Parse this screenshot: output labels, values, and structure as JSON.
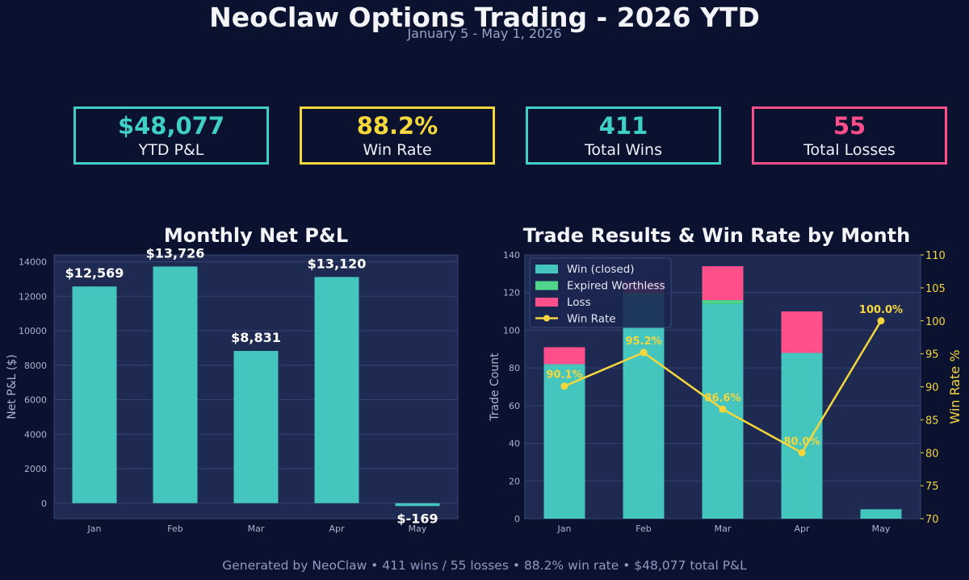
{
  "header": {
    "title": "NeoClaw Options Trading - 2026 YTD",
    "subtitle": "January 5 - May 1, 2026"
  },
  "kpis": [
    {
      "value": "$48,077",
      "label": "YTD P&L",
      "color": "#3ecfc6"
    },
    {
      "value": "88.2%",
      "label": "Win Rate",
      "color": "#f5d63d"
    },
    {
      "value": "411",
      "label": "Total Wins",
      "color": "#3ecfc6"
    },
    {
      "value": "55",
      "label": "Total Losses",
      "color": "#ff4f8b"
    }
  ],
  "footer": "Generated by NeoClaw  •  411 wins / 55 losses  •  88.2% win rate  •  $48,077 total P&L",
  "chart_data": [
    {
      "type": "bar",
      "title": "Monthly Net P&L",
      "ylabel": "Net P&L ($)",
      "categories": [
        "Jan",
        "Feb",
        "Mar",
        "Apr",
        "May"
      ],
      "values": [
        12569,
        13726,
        8831,
        13120,
        -169
      ],
      "data_labels": [
        "$12,569",
        "$13,726",
        "$8,831",
        "$13,120",
        "$-169"
      ],
      "ylim": [
        -900,
        14400
      ],
      "yticks": [
        0,
        2000,
        4000,
        6000,
        8000,
        10000,
        12000,
        14000
      ],
      "grid": true,
      "color": "#44c5bd"
    },
    {
      "type": "bar",
      "stacked": true,
      "title": "Trade Results & Win Rate by Month",
      "ylabel": "Trade Count",
      "y2label": "Win Rate %",
      "categories": [
        "Jan",
        "Feb",
        "Mar",
        "Apr",
        "May"
      ],
      "series": [
        {
          "name": "Win (closed)",
          "values": [
            82,
            118,
            114,
            88,
            5
          ],
          "color": "#44c5bd"
        },
        {
          "name": "Expired Worthless",
          "values": [
            0,
            2,
            2,
            0,
            0
          ],
          "color": "#4fd68a"
        },
        {
          "name": "Loss",
          "values": [
            9,
            6,
            18,
            22,
            0
          ],
          "color": "#ff4f8b"
        }
      ],
      "line_series": {
        "name": "Win Rate",
        "values": [
          90.1,
          95.2,
          86.6,
          80.0,
          100.0
        ],
        "data_labels": [
          "90.1%",
          "95.2%",
          "86.6%",
          "80.0%",
          "100.0%"
        ],
        "color": "#f5d63d"
      },
      "ylim": [
        0,
        140
      ],
      "yticks": [
        0,
        20,
        40,
        60,
        80,
        100,
        120,
        140
      ],
      "y2lim": [
        70,
        110
      ],
      "y2ticks": [
        70,
        75,
        80,
        85,
        90,
        95,
        100,
        105,
        110
      ],
      "legend_position": "top-left",
      "grid": true
    }
  ]
}
